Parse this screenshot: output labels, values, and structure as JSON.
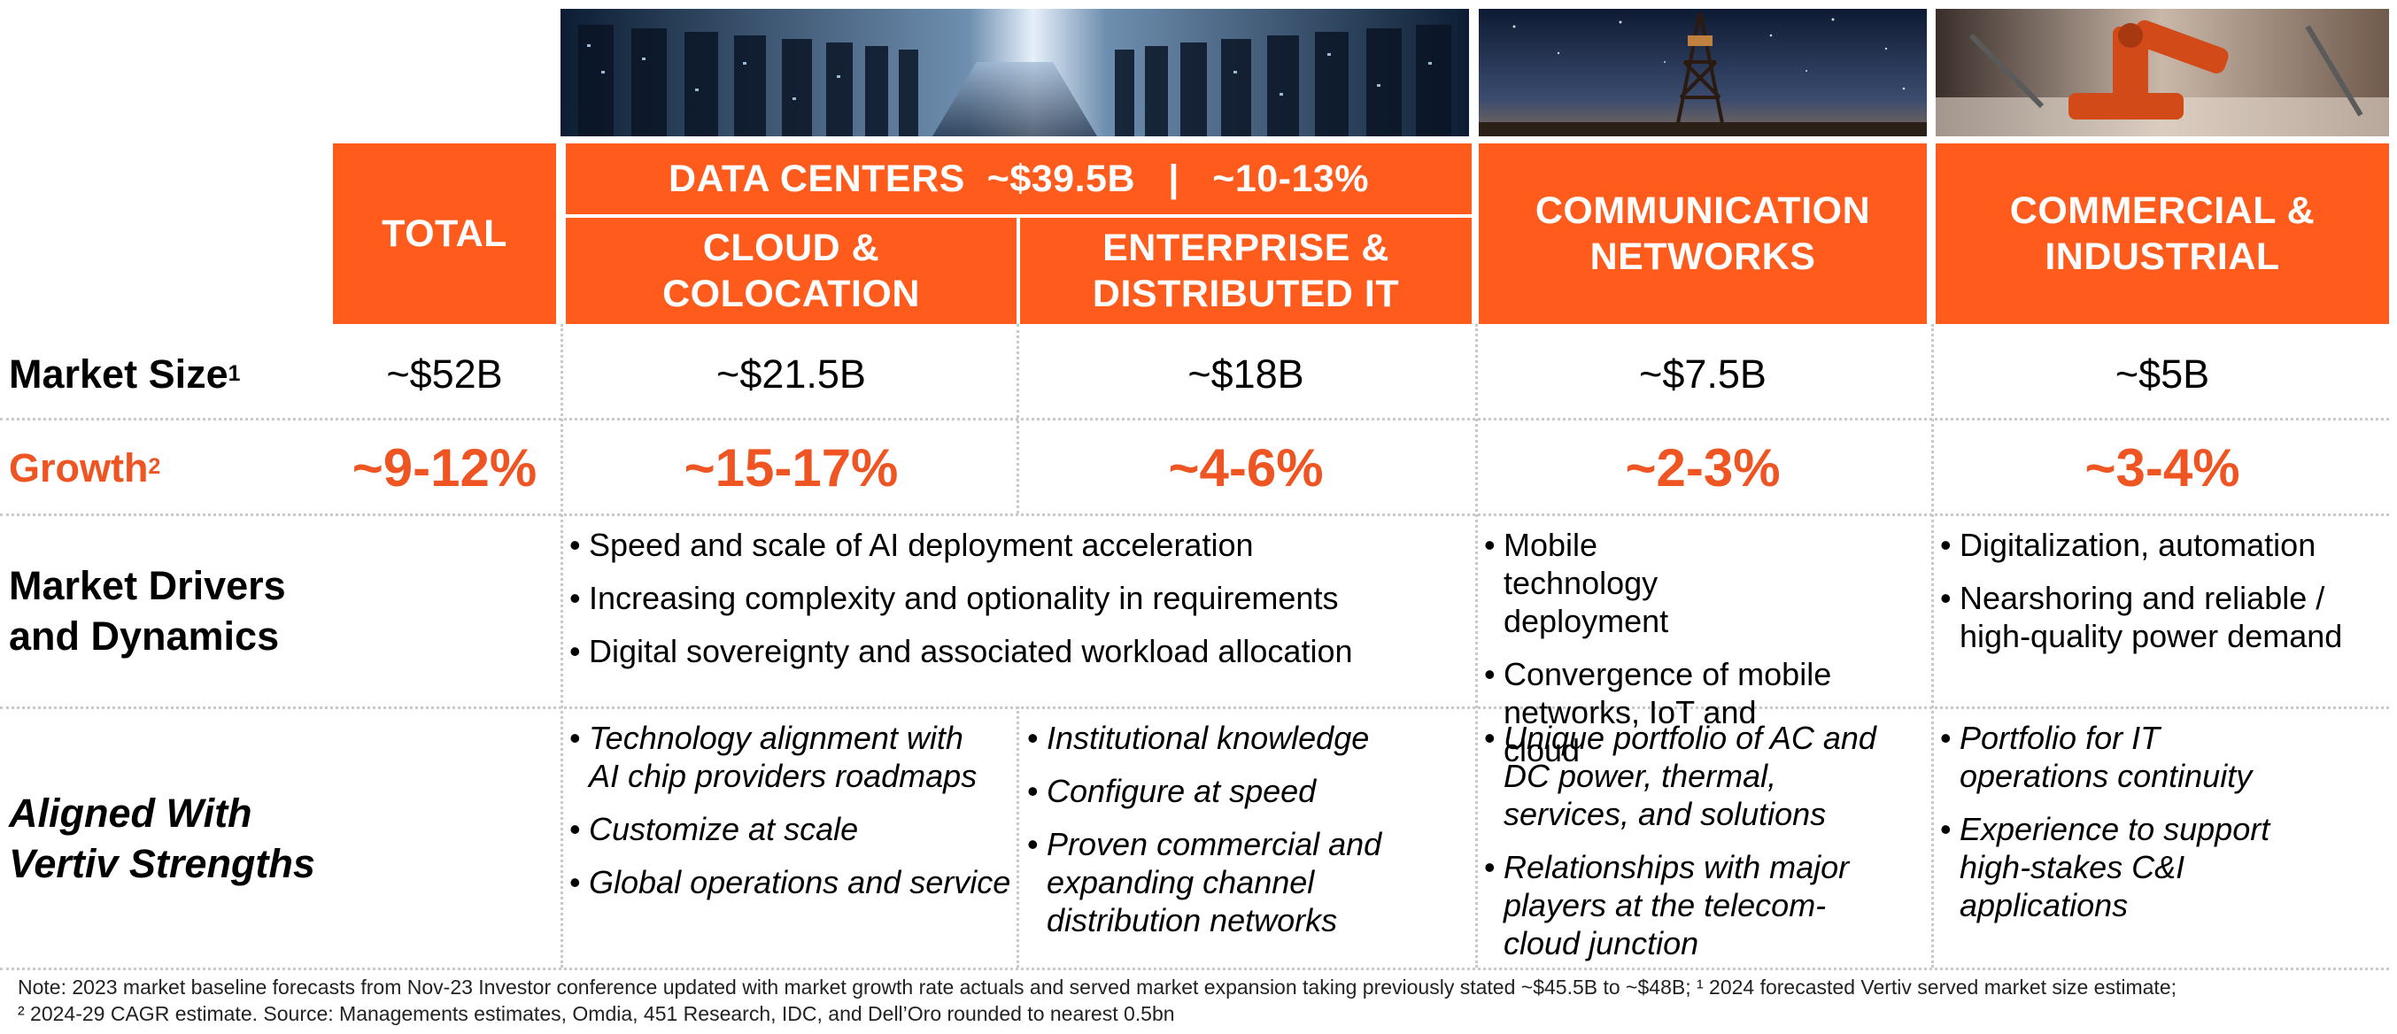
{
  "headers": {
    "total": "TOTAL",
    "data_centers": "DATA CENTERS  ~$39.5B   |   ~10-13%",
    "cloud": [
      "CLOUD &",
      "COLOCATION"
    ],
    "enterprise": [
      "ENTERPRISE &",
      "DISTRIBUTED IT"
    ],
    "communication": [
      "COMMUNICATION",
      "NETWORKS"
    ],
    "commercial": [
      "COMMERCIAL &",
      "INDUSTRIAL"
    ]
  },
  "row_labels": {
    "market_size": "Market Size",
    "market_size_sup": "1",
    "growth": "Growth",
    "growth_sup": "2",
    "drivers": [
      "Market Drivers",
      "and Dynamics"
    ],
    "aligned": [
      "Aligned With",
      "Vertiv Strengths"
    ]
  },
  "market_size": {
    "total": "~$52B",
    "cloud": "~$21.5B",
    "enterprise": "~$18B",
    "communication": "~$7.5B",
    "commercial": "~$5B"
  },
  "growth": {
    "total": "~9-12%",
    "cloud": "~15-17%",
    "enterprise": "~4-6%",
    "communication": "~2-3%",
    "commercial": "~3-4%"
  },
  "drivers": {
    "data_centers": [
      "Speed and scale of AI deployment acceleration",
      "Increasing complexity and optionality in requirements",
      "Digital sovereignty and associated workload allocation"
    ],
    "communication": [
      "Mobile technology deployment",
      "Convergence of mobile networks, IoT and cloud"
    ],
    "commercial": [
      "Digitalization, automation",
      "Nearshoring and reliable / high-quality power demand"
    ]
  },
  "strengths": {
    "cloud": [
      "Technology alignment with AI chip providers roadmaps",
      "Customize at scale",
      "Global operations and service"
    ],
    "enterprise": [
      "Institutional knowledge",
      "Configure at speed",
      "Proven commercial and expanding channel distribution networks"
    ],
    "communication": [
      "Unique portfolio of AC and DC power, thermal, services, and solutions",
      "Relationships with major players at the telecom-cloud junction"
    ],
    "commercial": [
      "Portfolio for IT operations continuity",
      "Experience to support high-stakes C&I applications"
    ]
  },
  "note": {
    "line1": "Note: 2023 market baseline forecasts from Nov-23 Investor conference updated with market growth rate actuals and served market expansion taking previously stated  ~$45.5B to ~$48B; ¹ 2024 forecasted Vertiv served market size estimate;",
    "line2": "² 2024-29 CAGR estimate. Source: Managements estimates, Omdia, 451 Research, IDC, and Dell’Oro rounded to nearest 0.5bn"
  },
  "colors": {
    "header_orange": "#fe5b1d",
    "growth_orange": "#ee5522",
    "divider": "#c9c9c9"
  },
  "images": [
    "data-center-server-aisle-photo",
    "telecom-tower-night-sky-photo",
    "industrial-robot-arm-photo"
  ]
}
